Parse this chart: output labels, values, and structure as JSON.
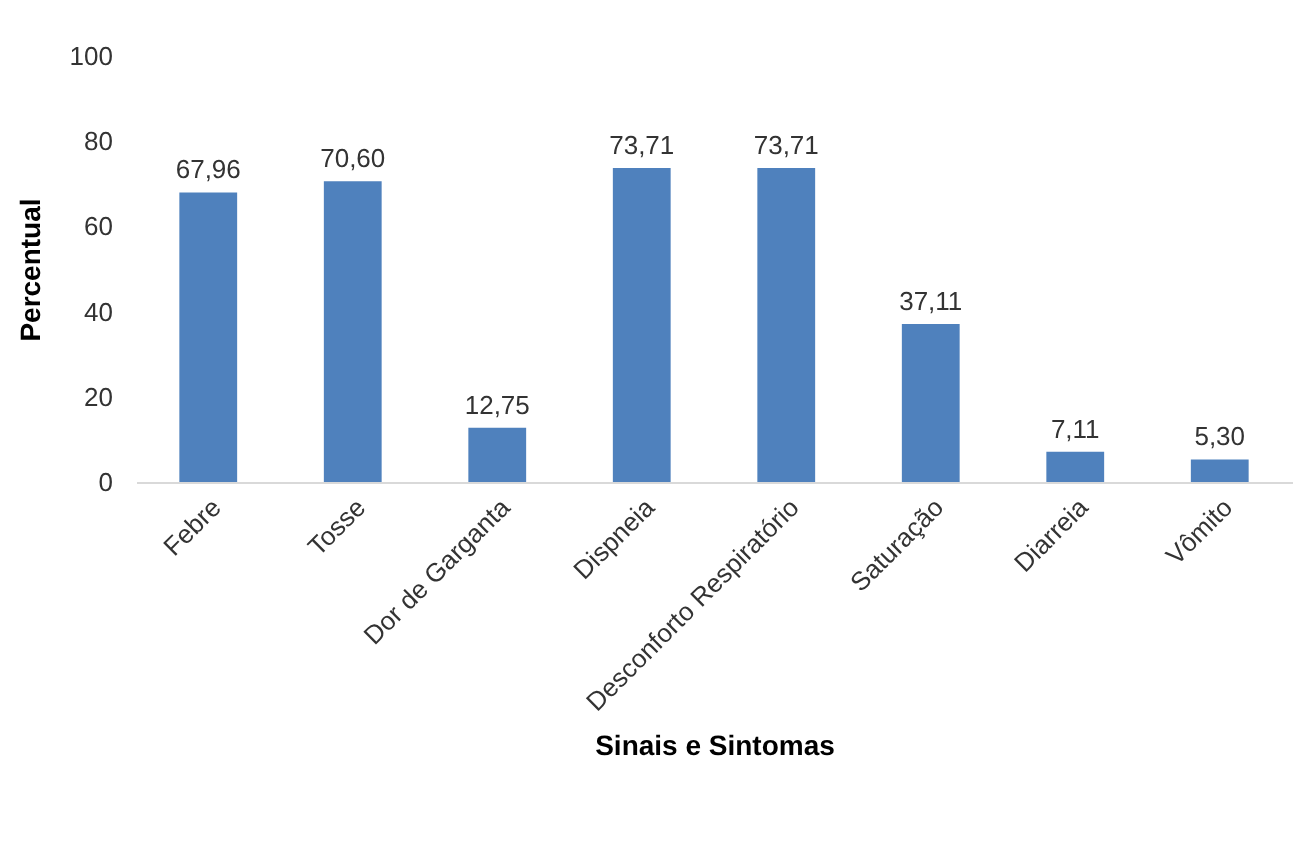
{
  "chart_data": {
    "type": "bar",
    "xlabel": "Sinais e Sintomas",
    "ylabel": "Percentual",
    "categories": [
      "Febre",
      "Tosse",
      "Dor de Garganta",
      "Dispneia",
      "Desconforto Respiratório",
      "Saturação",
      "Diarreia",
      "Vômito"
    ],
    "values": [
      67.96,
      70.6,
      12.75,
      73.71,
      73.71,
      37.11,
      7.11,
      5.3
    ],
    "value_labels": [
      "67,96",
      "70,60",
      "12,75",
      "73,71",
      "73,71",
      "37,11",
      "7,11",
      "5,30"
    ],
    "color": "#4f81bd",
    "ylim": [
      0,
      100
    ],
    "yticks": [
      0,
      20,
      40,
      60,
      80,
      100
    ],
    "grid": false
  }
}
